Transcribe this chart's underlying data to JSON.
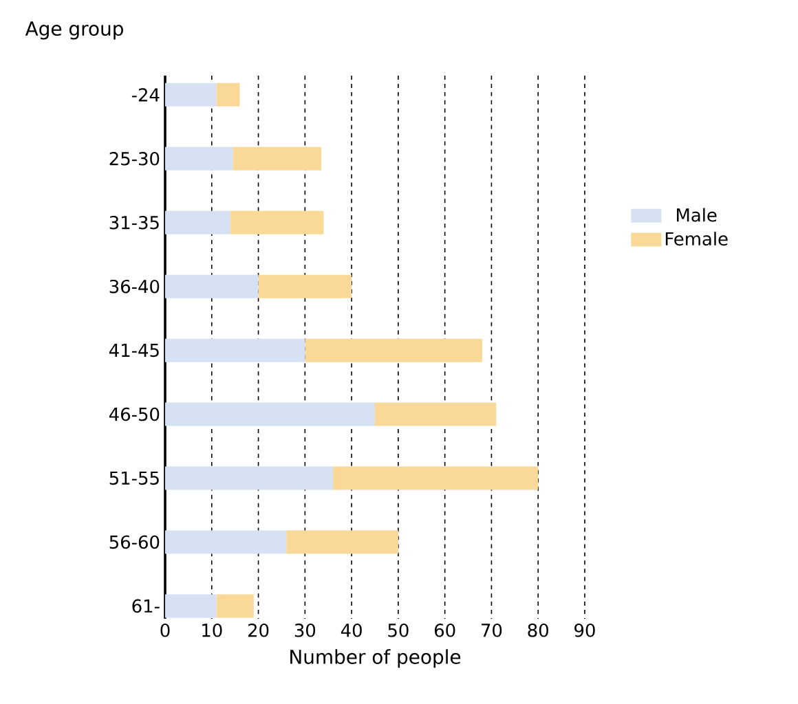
{
  "chart_data": {
    "type": "bar",
    "orientation": "horizontal",
    "stacked": true,
    "xlabel": "Number of people",
    "ylabel": "Age group",
    "categories": [
      "-24",
      "25-30",
      "31-35",
      "36-40",
      "41-45",
      "46-50",
      "51-55",
      "56-60",
      "61-"
    ],
    "series": [
      {
        "name": "Male",
        "color": "#d6e2f3",
        "values": [
          11,
          14.5,
          14,
          20,
          30,
          45,
          36,
          26,
          11
        ]
      },
      {
        "name": "Female",
        "color": "#fad897",
        "values": [
          5,
          19,
          20,
          20,
          38,
          26,
          44,
          24,
          8
        ]
      }
    ],
    "xlim": [
      0,
      90
    ],
    "xticks": [
      0,
      10,
      20,
      30,
      40,
      50,
      60,
      70,
      80,
      90
    ],
    "grid": "x",
    "legend": "right"
  }
}
